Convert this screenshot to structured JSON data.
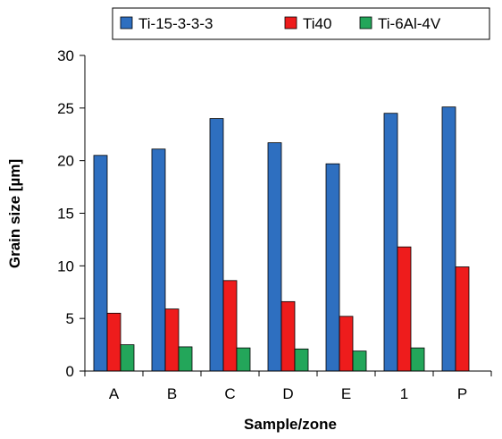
{
  "chart_data": {
    "type": "bar",
    "title": "",
    "xlabel": "Sample/zone",
    "ylabel": "Grain size [µm]",
    "categories": [
      "A",
      "B",
      "C",
      "D",
      "E",
      "1",
      "P"
    ],
    "ylim": [
      0,
      30
    ],
    "yticks": [
      0,
      5,
      10,
      15,
      20,
      25,
      30
    ],
    "grid": "none",
    "legend_position": "top",
    "series": [
      {
        "name": "Ti-15-3-3-3",
        "color": "#2e6fc0",
        "values": [
          20.5,
          21.1,
          24.0,
          21.7,
          19.7,
          24.5,
          25.1
        ]
      },
      {
        "name": "Ti40",
        "color": "#ee1c1c",
        "values": [
          5.5,
          5.9,
          8.6,
          6.6,
          5.2,
          11.8,
          9.9
        ]
      },
      {
        "name": "Ti-6Al-4V",
        "color": "#23a65a",
        "values": [
          2.5,
          2.3,
          2.2,
          2.1,
          1.9,
          2.2,
          0.0
        ]
      }
    ]
  }
}
